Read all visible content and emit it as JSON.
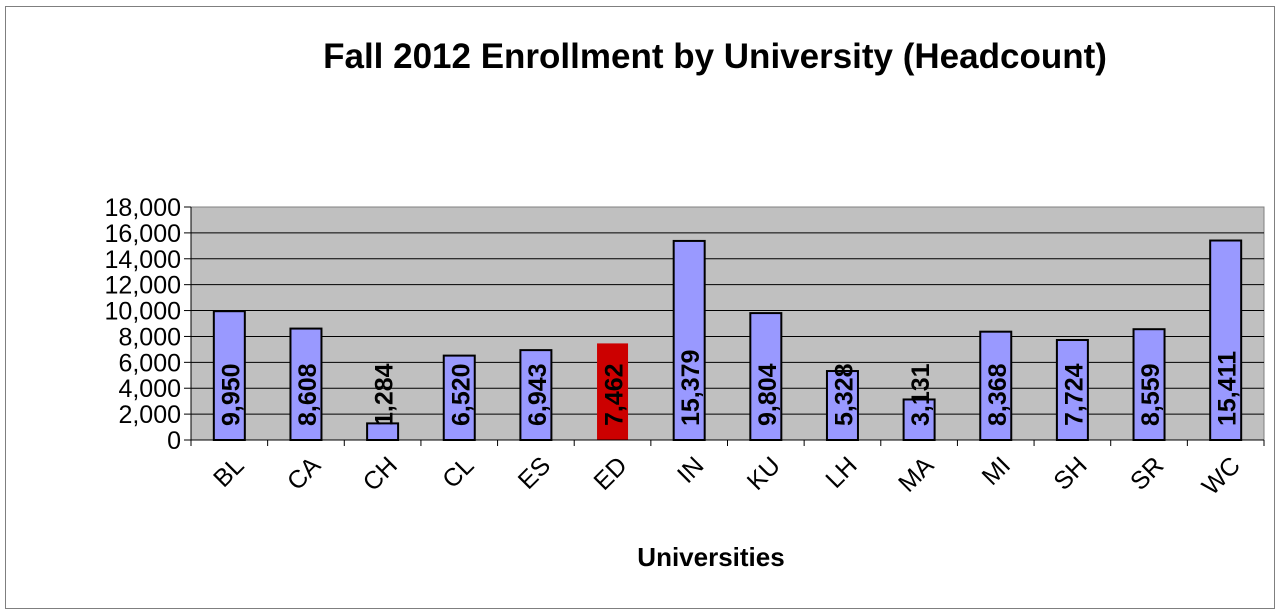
{
  "chart_data": {
    "type": "bar",
    "title": "Fall 2012 Enrollment by University (Headcount)",
    "xlabel": "Universities",
    "ylabel": "",
    "categories": [
      "BL",
      "CA",
      "CH",
      "CL",
      "ES",
      "ED",
      "IN",
      "KU",
      "LH",
      "MA",
      "MI",
      "SH",
      "SR",
      "WC"
    ],
    "values": [
      9950,
      8608,
      1284,
      6520,
      6943,
      7462,
      15379,
      9804,
      5328,
      3131,
      8368,
      7724,
      8559,
      15411
    ],
    "data_labels": [
      "9,950",
      "8,608",
      "1,284",
      "6,520",
      "6,943",
      "7,462",
      "15,379",
      "9,804",
      "5,328",
      "3,131",
      "8,368",
      "7,724",
      "8,559",
      "15,411"
    ],
    "yticks": [
      "0",
      "2,000",
      "4,000",
      "6,000",
      "8,000",
      "10,000",
      "12,000",
      "14,000",
      "16,000",
      "18,000"
    ],
    "ylim": [
      0,
      18000
    ],
    "grid": true,
    "legend": "none",
    "colors": {
      "bar": "#9999ff",
      "highlight_bar": "#cc0000",
      "highlight_label": "#ffffff",
      "plot_background": "#c0c0c0",
      "bar_border": "#000000"
    },
    "highlight_index": 5
  }
}
